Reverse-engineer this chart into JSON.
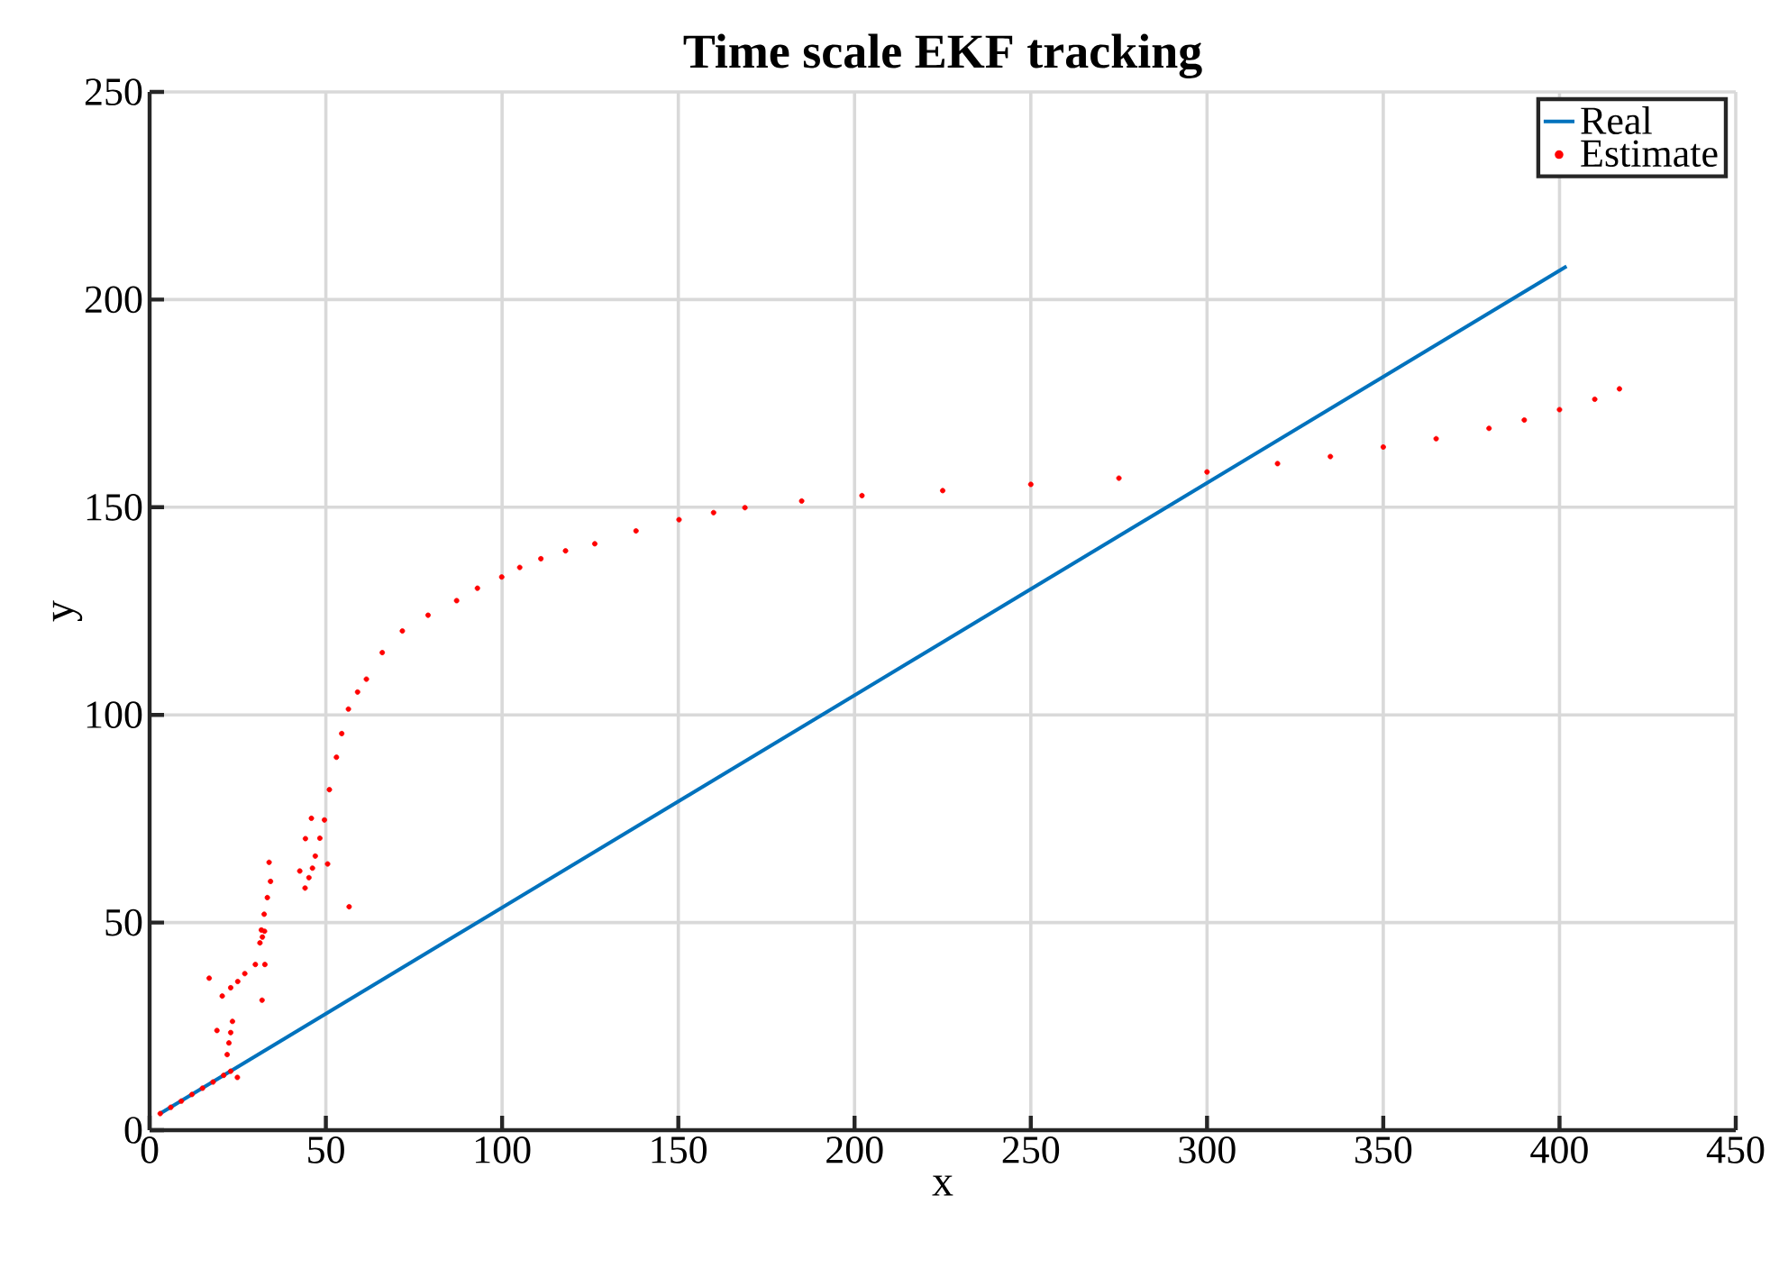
{
  "chart_data": {
    "type": "line",
    "title": "Time scale EKF tracking",
    "xlabel": "x",
    "ylabel": "y",
    "xlim": [
      0,
      450
    ],
    "ylim": [
      0,
      250
    ],
    "xticks": [
      0,
      50,
      100,
      150,
      200,
      250,
      300,
      350,
      400,
      450
    ],
    "yticks": [
      0,
      50,
      100,
      150,
      200,
      250
    ],
    "grid": true,
    "legend": "top right",
    "series": [
      {
        "name": "Real",
        "type": "line",
        "color": "#0072bd",
        "marker": "none",
        "line_style": "solid",
        "x": [
          3,
          402
        ],
        "values": [
          4,
          208
        ]
      },
      {
        "name": "Estimate",
        "type": "scatter",
        "color": "#ff0000",
        "marker": "circle",
        "x": [
          3,
          6,
          9,
          12,
          15,
          18,
          21,
          23,
          22,
          22.5,
          23,
          23.5,
          20.6,
          23,
          25,
          27,
          30,
          31.3,
          32,
          32.6,
          31.7,
          32.5,
          33.4,
          34.3,
          16.9,
          19.1,
          31.9,
          32.7,
          33.9,
          24.9,
          56.6,
          45.9,
          44.2,
          50.5,
          42.6,
          44.1,
          45.2,
          46.2,
          47,
          48.3,
          49.6,
          51,
          53,
          54.5,
          56.4,
          59,
          61.5,
          66,
          71.7,
          79,
          87.1,
          93,
          99.9,
          105,
          111,
          118,
          126.3,
          138,
          150.2,
          160,
          168.9,
          185,
          202.1,
          225,
          250,
          275,
          300,
          320,
          335,
          350,
          365,
          380,
          390,
          400,
          410,
          417
        ],
        "values": [
          4,
          5.5,
          7,
          8.6,
          10.1,
          11.6,
          13.2,
          14.2,
          18.2,
          21,
          23.5,
          26.2,
          32.3,
          34.3,
          35.8,
          37.7,
          39.9,
          45.1,
          46.5,
          47.9,
          48.2,
          52,
          56,
          59.9,
          36.6,
          24,
          31.3,
          39.9,
          64.5,
          12.7,
          53.8,
          75.1,
          70.2,
          64.1,
          62.4,
          58.3,
          60.8,
          63.1,
          66,
          70.3,
          74.7,
          82,
          89.8,
          95.5,
          101.4,
          105.5,
          108.6,
          115,
          120.2,
          124,
          127.5,
          130.5,
          133.2,
          135.5,
          137.6,
          139.5,
          141.2,
          144.3,
          147,
          148.7,
          149.9,
          151.5,
          152.8,
          154,
          155.5,
          157,
          158.5,
          160.5,
          162.2,
          164.5,
          166.5,
          169,
          171,
          173.5,
          176,
          178.5
        ]
      }
    ]
  }
}
